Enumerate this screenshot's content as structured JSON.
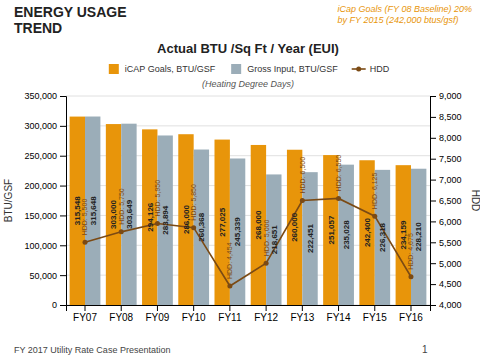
{
  "chart_data": {
    "type": "bar",
    "heading": [
      "ENERGY USAGE",
      "TREND"
    ],
    "title": "Actual BTU /Sq Ft / Year (EUI)",
    "subtitle": "(Heating Degree Days)",
    "annotation": [
      "iCap Goals (FY 08 Baseline) 20%",
      "by FY 2015 (242,000 btus/gsf)"
    ],
    "footer": "FY 2017 Utility Rate Case Presentation",
    "page_number": "1",
    "ylabel": "BTU/GSF",
    "y2label": "HDD",
    "categories": [
      "FY07",
      "FY08",
      "FY09",
      "FY10",
      "FY11",
      "FY12",
      "FY13",
      "FY14",
      "FY15",
      "FY16"
    ],
    "series": [
      {
        "name": "iCAP Goals, BTU/GSF",
        "color": "#E8950A",
        "values": [
          315548,
          303000,
          294126,
          286000,
          277025,
          268000,
          260000,
          251057,
          242400,
          234159
        ],
        "value_labels": [
          "315,548",
          "303,000",
          "294,126",
          "286,000",
          "277,025",
          "268,000",
          "260,000",
          "251,057",
          "242,400",
          "234,159"
        ]
      },
      {
        "name": "Gross Input, BTU/GSF",
        "color": "#9BADB8",
        "values": [
          315648,
          303649,
          283894,
          260368,
          245339,
          218651,
          222451,
          235028,
          226318,
          228210
        ],
        "value_labels": [
          "315,648",
          "303,649",
          "283,894",
          "260,368",
          "245,339",
          "218,651",
          "222,451",
          "235,028",
          "226,318",
          "228,210"
        ]
      },
      {
        "name": "HDD",
        "type": "line",
        "axis": "y2",
        "color": "#7B4A14",
        "marker": "circle",
        "values": [
          5500,
          5750,
          5950,
          5850,
          4454,
          5000,
          6500,
          6550,
          6125,
          4675
        ],
        "value_labels": [
          "HDD: 5,500",
          "HDD: 5,750",
          "HDD: 5,950",
          "HDD: 5,850",
          "HDD: 4,454",
          "HDD: 5,000",
          "HDD: 6,500",
          "HDD: 6,550",
          "HDD: 6,125",
          "HDD: 4,675"
        ]
      }
    ],
    "data_labels": true,
    "ylim": [
      0,
      350000
    ],
    "yticks": [
      0,
      {
        "value": 50000,
        "label": "50,000"
      },
      {
        "value": 100000,
        "label": "100,000"
      },
      {
        "value": 150000,
        "label": "150,000"
      },
      {
        "value": 200000,
        "label": "200,000"
      },
      {
        "value": 250000,
        "label": "250,000"
      },
      {
        "value": 300000,
        "label": "300,000"
      },
      {
        "value": 350000,
        "label": "350,000"
      }
    ],
    "y2lim": [
      4000,
      9000
    ],
    "y2ticks": [
      {
        "value": 4000,
        "label": "4,000"
      },
      {
        "value": 4500,
        "label": "4,500"
      },
      {
        "value": 5000,
        "label": "5,000"
      },
      {
        "value": 5500,
        "label": "5,500"
      },
      {
        "value": 6000,
        "label": "6,000"
      },
      {
        "value": 6500,
        "label": "6,500"
      },
      {
        "value": 7000,
        "label": "7,000"
      },
      {
        "value": 7500,
        "label": "7,500"
      },
      {
        "value": 8000,
        "label": "8,000"
      },
      {
        "value": 8500,
        "label": "8,500"
      },
      {
        "value": 9000,
        "label": "9,000"
      }
    ],
    "grid": true,
    "legend": "top"
  }
}
